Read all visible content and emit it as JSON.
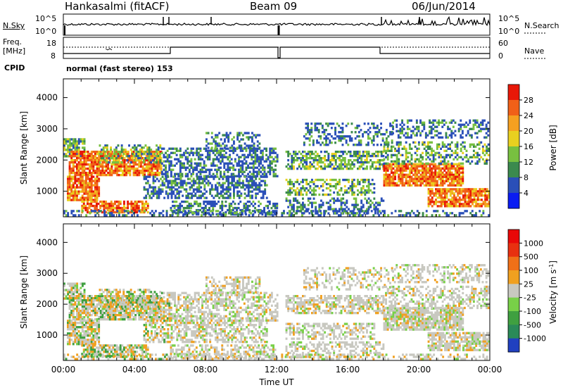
{
  "header": {
    "station": "Hankasalmi (fitACF)",
    "beam": "Beam 09",
    "date": "06/Jun/2014"
  },
  "noise_panel": {
    "left_label": "N.Sky",
    "right_label": "N.Search",
    "left_ticks": [
      "10^5",
      "10^0"
    ],
    "right_ticks": [
      "10^5",
      "10^0"
    ]
  },
  "freq_panel": {
    "left_label_1": "Freq.",
    "left_label_2": "[MHz]",
    "left_ticks": [
      "18",
      "8"
    ],
    "right_label": "Nave",
    "right_ticks": [
      "60",
      "0"
    ]
  },
  "cpid": {
    "label": "CPID",
    "value": "normal (fast stereo) 153"
  },
  "chart_data": [
    {
      "type": "heatmap",
      "title": "",
      "xlabel": "Time UT",
      "ylabel": "Slant Range [km]",
      "x_ticks": [
        "00:00",
        "04:00",
        "08:00",
        "12:00",
        "16:00",
        "20:00",
        "00:00"
      ],
      "y_ticks": [
        "1000",
        "2000",
        "3000",
        "4000"
      ],
      "ylim": [
        180,
        4600
      ],
      "colorbar_label": "Power [dB]",
      "colorbar_ticks": [
        "4",
        "8",
        "12",
        "16",
        "20",
        "24",
        "28"
      ],
      "colorbar_colors": [
        "#0a1cf2",
        "#2a4fb8",
        "#3b8a4e",
        "#78c040",
        "#e8d020",
        "#f5a020",
        "#f06018",
        "#e81808"
      ]
    },
    {
      "type": "heatmap",
      "title": "",
      "xlabel": "Time UT",
      "ylabel": "Slant Range [km]",
      "x_ticks": [
        "00:00",
        "04:00",
        "08:00",
        "12:00",
        "16:00",
        "20:00",
        "00:00"
      ],
      "y_ticks": [
        "1000",
        "2000",
        "3000",
        "4000"
      ],
      "ylim": [
        180,
        4600
      ],
      "colorbar_label": "Velocity [m s^-1]",
      "colorbar_ticks": [
        "1000",
        "500",
        "100",
        "25",
        "-25",
        "-100",
        "-500",
        "-1000"
      ],
      "colorbar_colors": [
        "#2040c0",
        "#2a8a58",
        "#3fa040",
        "#78d048",
        "#c8c8c0",
        "#f0a020",
        "#f07018",
        "#e83010",
        "#e80808"
      ]
    }
  ],
  "colors": {
    "ground_scatter": "#c8c8c0",
    "frame": "#000000"
  }
}
